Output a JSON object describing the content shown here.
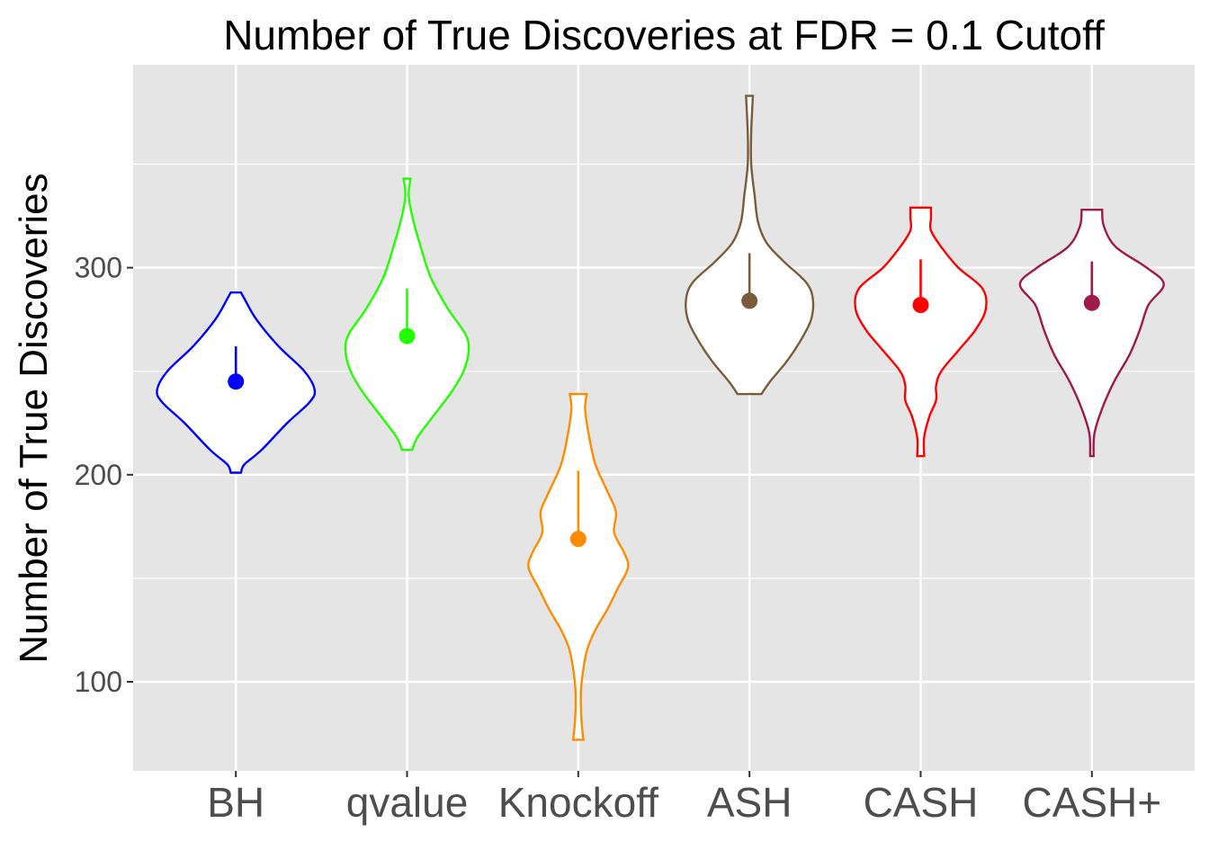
{
  "chart_data": {
    "type": "violin",
    "title": "Number of True Discoveries at FDR = 0.1 Cutoff",
    "xlabel": "",
    "ylabel": "Number of True Discoveries",
    "ylim": [
      57,
      398
    ],
    "y_ticks": [
      100,
      200,
      300
    ],
    "y_minor_ticks": [
      150,
      250,
      350
    ],
    "grid": true,
    "categories": [
      "BH",
      "qvalue",
      "Knockoff",
      "ASH",
      "CASH",
      "CASH+"
    ],
    "series": [
      {
        "name": "BH",
        "color": "#0000FF",
        "min": 201,
        "max": 288,
        "point": 245,
        "line_top": 262,
        "density": [
          [
            201,
            0.03
          ],
          [
            205,
            0.05
          ],
          [
            212,
            0.15
          ],
          [
            225,
            0.3
          ],
          [
            235,
            0.43
          ],
          [
            241,
            0.46
          ],
          [
            250,
            0.4
          ],
          [
            262,
            0.25
          ],
          [
            275,
            0.12
          ],
          [
            285,
            0.05
          ],
          [
            288,
            0.03
          ]
        ]
      },
      {
        "name": "qvalue",
        "color": "#22FF00",
        "min": 212,
        "max": 343,
        "point": 267,
        "line_top": 290,
        "density": [
          [
            212,
            0.03
          ],
          [
            218,
            0.06
          ],
          [
            228,
            0.15
          ],
          [
            240,
            0.26
          ],
          [
            250,
            0.33
          ],
          [
            260,
            0.36
          ],
          [
            268,
            0.34
          ],
          [
            280,
            0.24
          ],
          [
            295,
            0.14
          ],
          [
            310,
            0.08
          ],
          [
            325,
            0.03
          ],
          [
            335,
            0.01
          ],
          [
            343,
            0.02
          ]
        ]
      },
      {
        "name": "Knockoff",
        "color": "#FF8C00",
        "min": 72,
        "max": 239,
        "point": 169,
        "line_top": 202,
        "density": [
          [
            72,
            0.03
          ],
          [
            80,
            0.02
          ],
          [
            90,
            0.015
          ],
          [
            100,
            0.02
          ],
          [
            115,
            0.05
          ],
          [
            125,
            0.1
          ],
          [
            135,
            0.17
          ],
          [
            145,
            0.23
          ],
          [
            155,
            0.29
          ],
          [
            162,
            0.27
          ],
          [
            172,
            0.21
          ],
          [
            182,
            0.22
          ],
          [
            192,
            0.17
          ],
          [
            205,
            0.1
          ],
          [
            220,
            0.06
          ],
          [
            232,
            0.04
          ],
          [
            239,
            0.05
          ]
        ]
      },
      {
        "name": "ASH",
        "color": "#7A5C3A",
        "min": 239,
        "max": 383,
        "point": 284,
        "line_top": 307,
        "density": [
          [
            239,
            0.07
          ],
          [
            245,
            0.12
          ],
          [
            255,
            0.22
          ],
          [
            265,
            0.3
          ],
          [
            275,
            0.36
          ],
          [
            285,
            0.37
          ],
          [
            293,
            0.33
          ],
          [
            303,
            0.2
          ],
          [
            312,
            0.1
          ],
          [
            322,
            0.05
          ],
          [
            335,
            0.03
          ],
          [
            350,
            0.01
          ],
          [
            365,
            0.01
          ],
          [
            383,
            0.02
          ]
        ]
      },
      {
        "name": "CASH",
        "color": "#FF0000",
        "min": 209,
        "max": 329,
        "point": 282,
        "line_top": 304,
        "density": [
          [
            209,
            0.02
          ],
          [
            218,
            0.02
          ],
          [
            228,
            0.05
          ],
          [
            236,
            0.09
          ],
          [
            243,
            0.09
          ],
          [
            250,
            0.12
          ],
          [
            260,
            0.22
          ],
          [
            270,
            0.32
          ],
          [
            280,
            0.38
          ],
          [
            290,
            0.36
          ],
          [
            300,
            0.22
          ],
          [
            310,
            0.12
          ],
          [
            318,
            0.06
          ],
          [
            324,
            0.06
          ],
          [
            329,
            0.06
          ]
        ]
      },
      {
        "name": "CASH+",
        "color": "#A0194B",
        "min": 209,
        "max": 328,
        "point": 283,
        "line_top": 303,
        "density": [
          [
            209,
            0.01
          ],
          [
            220,
            0.015
          ],
          [
            232,
            0.06
          ],
          [
            245,
            0.13
          ],
          [
            258,
            0.22
          ],
          [
            270,
            0.28
          ],
          [
            282,
            0.33
          ],
          [
            292,
            0.42
          ],
          [
            300,
            0.32
          ],
          [
            310,
            0.14
          ],
          [
            320,
            0.07
          ],
          [
            328,
            0.06
          ]
        ]
      }
    ]
  }
}
